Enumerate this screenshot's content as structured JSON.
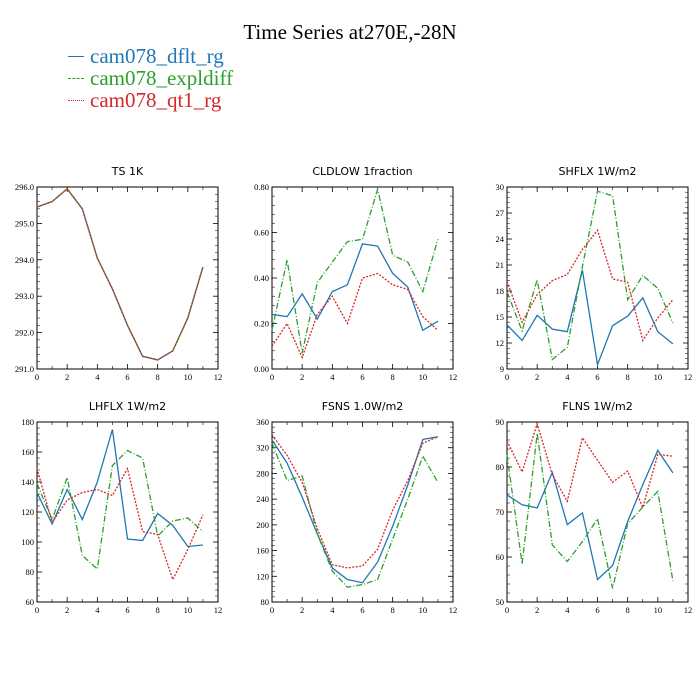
{
  "title": "Time Series at270E,-28N",
  "legend": [
    {
      "name": "cam078_dflt_rg",
      "color": "#1f77b4",
      "dash": ""
    },
    {
      "name": "cam078_expldiff",
      "color": "#2ca02c",
      "dash": "6 2 1 2"
    },
    {
      "name": "cam078_qt1_rg",
      "color": "#d62728",
      "dash": "2 1.5"
    }
  ],
  "chart_data": [
    {
      "type": "line",
      "title": "TS   1K",
      "x": [
        0,
        1,
        2,
        3,
        4,
        5,
        6,
        7,
        8,
        9,
        10,
        11
      ],
      "xlim": [
        0,
        12
      ],
      "xticks": [
        0,
        2,
        4,
        6,
        8,
        10,
        12
      ],
      "ylim": [
        291.0,
        296.0
      ],
      "yticks": [
        291.0,
        292.0,
        293.0,
        294.0,
        295.0,
        296.0
      ],
      "ytick_labels": [
        "291.0",
        "292.0",
        "293.0",
        "294.0",
        "295.0",
        "296.0"
      ],
      "series": [
        {
          "name": "cam078_dflt_rg",
          "values": [
            295.45,
            295.6,
            295.95,
            295.4,
            294.05,
            293.2,
            292.2,
            291.35,
            291.25,
            291.5,
            292.4,
            293.8
          ]
        },
        {
          "name": "cam078_expldiff",
          "values": [
            295.45,
            295.6,
            295.95,
            295.4,
            294.05,
            293.2,
            292.2,
            291.35,
            291.25,
            291.5,
            292.4,
            293.8
          ]
        },
        {
          "name": "cam078_qt1_rg",
          "values": [
            295.45,
            295.6,
            295.95,
            295.4,
            294.05,
            293.2,
            292.2,
            291.35,
            291.25,
            291.5,
            292.4,
            293.8
          ]
        }
      ]
    },
    {
      "type": "line",
      "title": "CLDLOW   1fraction",
      "x": [
        0,
        1,
        2,
        3,
        4,
        5,
        6,
        7,
        8,
        9,
        10,
        11
      ],
      "xlim": [
        0,
        12
      ],
      "xticks": [
        0,
        2,
        4,
        6,
        8,
        10,
        12
      ],
      "ylim": [
        0,
        0.8
      ],
      "yticks": [
        0,
        0.2,
        0.4,
        0.6,
        0.8
      ],
      "ytick_labels": [
        "0.00",
        "0.20",
        "0.40",
        "0.60",
        "0.80"
      ],
      "series": [
        {
          "name": "cam078_dflt_rg",
          "values": [
            0.24,
            0.23,
            0.33,
            0.22,
            0.34,
            0.37,
            0.55,
            0.54,
            0.42,
            0.36,
            0.17,
            0.21
          ]
        },
        {
          "name": "cam078_expldiff",
          "values": [
            0.17,
            0.48,
            0.07,
            0.38,
            0.47,
            0.56,
            0.57,
            0.79,
            0.5,
            0.47,
            0.34,
            0.57
          ]
        },
        {
          "name": "cam078_qt1_rg",
          "values": [
            0.1,
            0.2,
            0.05,
            0.24,
            0.32,
            0.2,
            0.4,
            0.42,
            0.37,
            0.35,
            0.23,
            0.17
          ]
        }
      ]
    },
    {
      "type": "line",
      "title": "SHFLX   1W/m2",
      "x": [
        0,
        1,
        2,
        3,
        4,
        5,
        6,
        7,
        8,
        9,
        10,
        11
      ],
      "xlim": [
        0,
        12
      ],
      "xticks": [
        0,
        2,
        4,
        6,
        8,
        10,
        12
      ],
      "ylim": [
        9,
        30
      ],
      "yticks": [
        9,
        12,
        15,
        18,
        21,
        24,
        27,
        30
      ],
      "ytick_labels": [
        "9",
        "12",
        "15",
        "18",
        "21",
        "24",
        "27",
        "30"
      ],
      "series": [
        {
          "name": "cam078_dflt_rg",
          "values": [
            14.1,
            12.3,
            15.2,
            13.6,
            13.3,
            20.4,
            9.5,
            14.0,
            15.1,
            17.2,
            13.3,
            11.9
          ]
        },
        {
          "name": "cam078_expldiff",
          "values": [
            17.9,
            13.4,
            19.3,
            10.1,
            11.5,
            20.8,
            29.5,
            29.0,
            17.0,
            19.8,
            18.3,
            14.3
          ]
        },
        {
          "name": "cam078_qt1_rg",
          "values": [
            19.1,
            14.4,
            17.6,
            19.2,
            19.9,
            22.8,
            25.0,
            19.4,
            19.0,
            12.3,
            14.9,
            17.0
          ]
        }
      ]
    },
    {
      "type": "line",
      "title": "LHFLX   1W/m2",
      "x": [
        0,
        1,
        2,
        3,
        4,
        5,
        6,
        7,
        8,
        9,
        10,
        11
      ],
      "xlim": [
        0,
        12
      ],
      "xticks": [
        0,
        2,
        4,
        6,
        8,
        10,
        12
      ],
      "ylim": [
        60,
        180
      ],
      "yticks": [
        60,
        80,
        100,
        120,
        140,
        160,
        180
      ],
      "ytick_labels": [
        "60",
        "80",
        "100",
        "120",
        "140",
        "160",
        "180"
      ],
      "series": [
        {
          "name": "cam078_dflt_rg",
          "values": [
            133,
            112,
            135,
            115,
            140,
            175,
            102,
            101,
            119,
            111,
            97,
            98
          ]
        },
        {
          "name": "cam078_expldiff",
          "values": [
            139,
            115,
            143,
            91,
            82,
            151,
            161,
            156,
            104,
            114,
            116,
            107
          ]
        },
        {
          "name": "cam078_qt1_rg",
          "values": [
            149,
            113,
            128,
            133,
            135,
            131,
            149,
            107,
            105,
            75,
            95,
            118
          ]
        }
      ]
    },
    {
      "type": "line",
      "title": "FSNS   1.0W/m2",
      "x": [
        0,
        1,
        2,
        3,
        4,
        5,
        6,
        7,
        8,
        9,
        10,
        11
      ],
      "xlim": [
        0,
        12
      ],
      "xticks": [
        0,
        2,
        4,
        6,
        8,
        10,
        12
      ],
      "ylim": [
        80,
        360
      ],
      "yticks": [
        80,
        120,
        160,
        200,
        240,
        280,
        320,
        360
      ],
      "ytick_labels": [
        "80",
        "120",
        "160",
        "200",
        "240",
        "280",
        "320",
        "360"
      ],
      "series": [
        {
          "name": "cam078_dflt_rg",
          "values": [
            332,
            296,
            243,
            186,
            133,
            115,
            110,
            142,
            198,
            262,
            333,
            337
          ]
        },
        {
          "name": "cam078_expldiff",
          "values": [
            327,
            269,
            276,
            186,
            128,
            103,
            107,
            115,
            178,
            240,
            307,
            266
          ]
        },
        {
          "name": "cam078_qt1_rg",
          "values": [
            340,
            308,
            266,
            194,
            138,
            133,
            136,
            162,
            223,
            269,
            327,
            337
          ]
        }
      ]
    },
    {
      "type": "line",
      "title": "FLNS   1W/m2",
      "x": [
        0,
        1,
        2,
        3,
        4,
        5,
        6,
        7,
        8,
        9,
        10,
        11
      ],
      "xlim": [
        0,
        12
      ],
      "xticks": [
        0,
        2,
        4,
        6,
        8,
        10,
        12
      ],
      "ylim": [
        50,
        90
      ],
      "yticks": [
        50,
        60,
        70,
        80,
        90
      ],
      "ytick_labels": [
        "50",
        "60",
        "70",
        "80",
        "90"
      ],
      "series": [
        {
          "name": "cam078_dflt_rg",
          "values": [
            73.8,
            71.6,
            70.9,
            78.8,
            67.2,
            69.8,
            55.0,
            58.1,
            67.9,
            76.1,
            83.7,
            78.7
          ]
        },
        {
          "name": "cam078_expldiff",
          "values": [
            82.7,
            58.5,
            87.5,
            62.7,
            59.0,
            63.4,
            68.5,
            53.0,
            67.4,
            71.1,
            74.6,
            54.7
          ]
        },
        {
          "name": "cam078_qt1_rg",
          "values": [
            85.8,
            78.9,
            89.6,
            78.3,
            72.4,
            86.5,
            81.5,
            76.6,
            79.1,
            71.0,
            82.8,
            82.4
          ]
        }
      ]
    }
  ]
}
